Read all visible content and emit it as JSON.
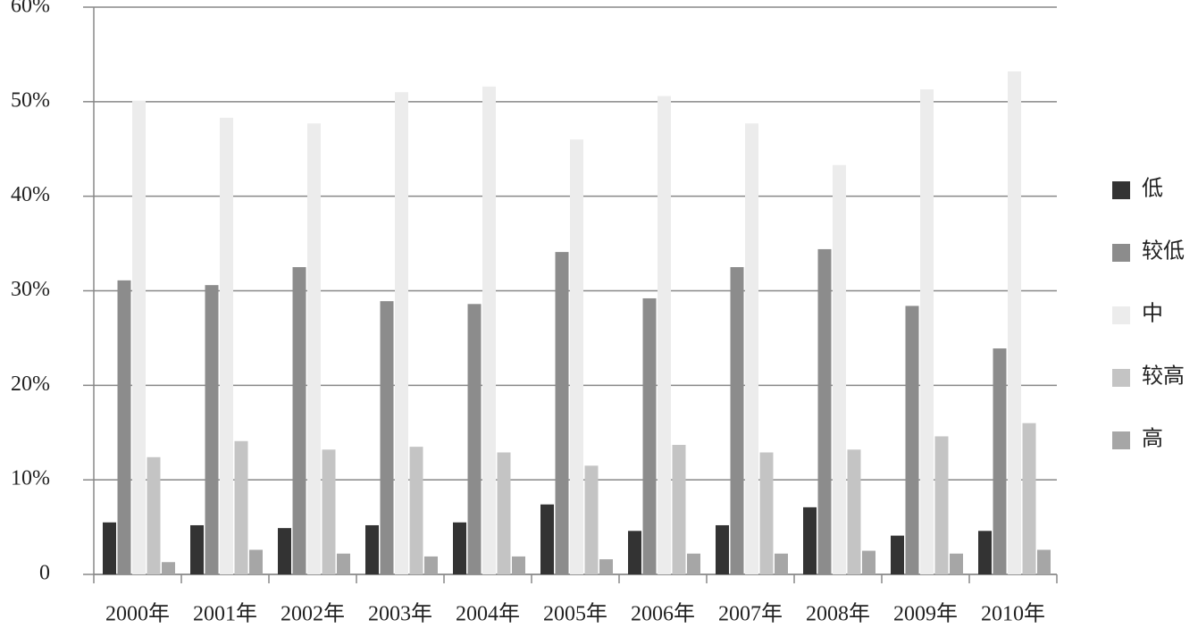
{
  "chart_data": {
    "type": "bar",
    "categories": [
      "2000年",
      "2001年",
      "2002年",
      "2003年",
      "2004年",
      "2005年",
      "2006年",
      "2007年",
      "2008年",
      "2009年",
      "2010年"
    ],
    "series": [
      {
        "name": "低",
        "color": "#333333",
        "values": [
          5.5,
          5.2,
          4.9,
          5.2,
          5.5,
          7.4,
          4.6,
          5.2,
          7.1,
          4.1,
          4.6
        ]
      },
      {
        "name": "较低",
        "color": "#8c8c8c",
        "values": [
          31.1,
          30.6,
          32.5,
          28.9,
          28.6,
          34.1,
          29.2,
          32.5,
          34.4,
          28.4,
          23.9
        ]
      },
      {
        "name": "中",
        "color": "#ececec",
        "values": [
          50.1,
          48.3,
          47.7,
          51.0,
          51.6,
          46.0,
          50.6,
          47.7,
          43.3,
          51.3,
          53.2
        ]
      },
      {
        "name": "较高",
        "color": "#c4c4c4",
        "values": [
          12.4,
          14.1,
          13.2,
          13.5,
          12.9,
          11.5,
          13.7,
          12.9,
          13.2,
          14.6,
          16.0
        ]
      },
      {
        "name": "高",
        "color": "#a6a6a6",
        "values": [
          1.3,
          2.6,
          2.2,
          1.9,
          1.9,
          1.6,
          2.2,
          2.2,
          2.5,
          2.2,
          2.6
        ]
      }
    ],
    "ylim": [
      0,
      60
    ],
    "yticks": [
      0,
      {
        "value": 10,
        "label": "10%"
      },
      {
        "value": 20,
        "label": "20%"
      },
      {
        "value": 30,
        "label": "30%"
      },
      {
        "value": 40,
        "label": "40%"
      },
      {
        "value": 50,
        "label": "50%"
      },
      {
        "value": 60,
        "label": "60%"
      }
    ],
    "grid": true,
    "legend": "right"
  }
}
